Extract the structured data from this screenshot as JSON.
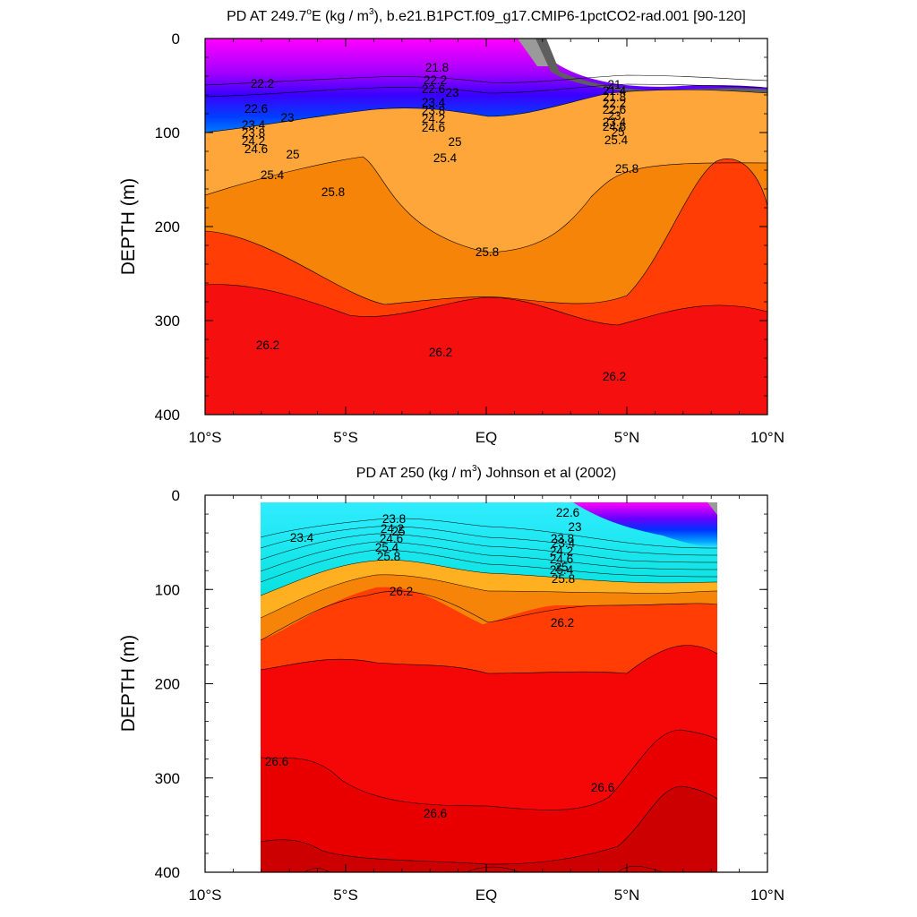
{
  "panels": [
    {
      "title_prefix": "PD AT 249.7",
      "title_deg": "o",
      "title_mid": "E (kg / m",
      "title_sup": "3",
      "title_suffix": "), b.e21.B1PCT.f09_g17.CMIP6-1pctCO2-rad.001 [90-120]"
    },
    {
      "title_prefix": "PD AT 250 (kg / m",
      "title_sup": "3",
      "title_suffix": ") Johnson et al (2002)"
    }
  ],
  "chart_data": [
    {
      "type": "contour",
      "title": "PD AT 249.7°E (kg / m3), b.e21.B1PCT.f09_g17.CMIP6-1pctCO2-rad.001 [90-120]",
      "ylabel": "DEPTH (m)",
      "xlim": [
        -10,
        10
      ],
      "ylim": [
        0,
        400
      ],
      "y_inverted": true,
      "x_ticks": [
        "10°S",
        "5°S",
        "EQ",
        "5°N",
        "10°N"
      ],
      "y_ticks": [
        "0",
        "100",
        "200",
        "300",
        "400"
      ],
      "contour_interval": 0.4,
      "contour_labels": [
        "21",
        "21.4",
        "21.8",
        "22.2",
        "22.6",
        "23",
        "23.4",
        "23.8",
        "24.2",
        "24.6",
        "25",
        "25.4",
        "25.8",
        "26.2"
      ],
      "isopycnal_depths": {
        "x": [
          -10,
          -7,
          -5,
          -3,
          -1.5,
          0,
          1.5,
          3,
          5,
          7,
          8,
          10
        ],
        "22.2": [
          8,
          36,
          40,
          45,
          44,
          44,
          48,
          52,
          53,
          55,
          57,
          60
        ],
        "23.4": [
          68,
          80,
          80,
          78,
          74,
          72,
          74,
          78,
          80,
          80,
          82,
          82
        ],
        "25.0": [
          110,
          116,
          112,
          104,
          102,
          106,
          104,
          98,
          92,
          94,
          96,
          100
        ],
        "25.4": [
          148,
          140,
          128,
          122,
          118,
          124,
          130,
          114,
          104,
          104,
          104,
          104
        ],
        "25.8": [
          218,
          195,
          175,
          170,
          162,
          200,
          208,
          178,
          152,
          152,
          152,
          160
        ],
        "26.2": [
          318,
          328,
          352,
          344,
          336,
          336,
          352,
          362,
          352,
          336,
          338,
          348
        ]
      },
      "fill_bands": [
        {
          "from": 25.4,
          "to": 25.8,
          "color": "#f59a1a"
        },
        {
          "from": 25.8,
          "to": 26.2,
          "color": "#f58409"
        },
        {
          "from": 26.2,
          "to": 26.6,
          "color": "#ff3d04"
        },
        {
          "from": 26.6,
          "to": 27.0,
          "color": "#f50f0f"
        }
      ]
    },
    {
      "type": "contour",
      "title": "PD AT 250 (kg / m3) Johnson et al (2002)",
      "ylabel": "DEPTH (m)",
      "xlim": [
        -10,
        10
      ],
      "ylim": [
        0,
        400
      ],
      "y_inverted": true,
      "data_x_range": [
        -8,
        8.2
      ],
      "x_ticks": [
        "10°S",
        "5°S",
        "EQ",
        "5°N",
        "10°N"
      ],
      "y_ticks": [
        "0",
        "100",
        "200",
        "300",
        "400"
      ],
      "contour_interval": 0.4,
      "contour_labels": [
        "22.6",
        "23",
        "23.4",
        "23.8",
        "24.2",
        "24.6",
        "25",
        "25.4",
        "25.8",
        "26.2",
        "26.6"
      ],
      "isopycnal_depths": {
        "x": [
          -8,
          -6,
          -4,
          -2,
          0,
          2,
          4,
          6,
          8.2
        ],
        "23.4": [
          40,
          30,
          22,
          18,
          22,
          28,
          38,
          52,
          62
        ],
        "25.8": [
          100,
          80,
          62,
          68,
          80,
          84,
          84,
          86,
          88
        ],
        "26.2": [
          152,
          108,
          82,
          90,
          120,
          120,
          120,
          112,
          112
        ],
        "26.6": [
          186,
          178,
          225,
          215,
          245,
          240,
          240,
          155,
          170
        ],
        "27.0": [
          285,
          282,
          335,
          338,
          340,
          360,
          345,
          236,
          262
        ]
      },
      "fill_bands": [
        {
          "from": 25.8,
          "to": 26.2,
          "color": "#ff3d04"
        },
        {
          "from": 26.2,
          "to": 26.6,
          "color": "#f50707"
        },
        {
          "from": 26.6,
          "to": 27.0,
          "color": "#e80000"
        },
        {
          "from": 27.0,
          "to": 27.4,
          "color": "#cd0000"
        }
      ]
    }
  ]
}
